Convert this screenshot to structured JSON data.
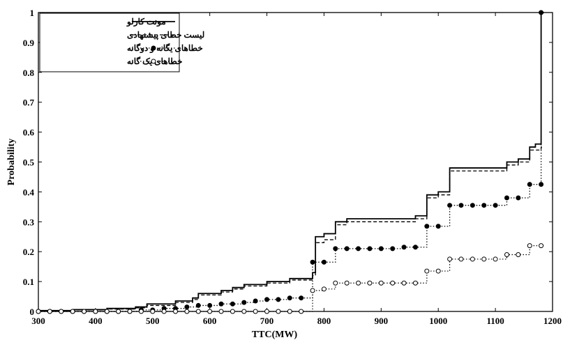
{
  "chart_data": {
    "type": "line",
    "title": "",
    "xlabel": "TTC(MW)",
    "ylabel": "Probability",
    "xlim": [
      300,
      1200
    ],
    "ylim": [
      0,
      1
    ],
    "xticks": [
      "300",
      "400",
      "500",
      "600",
      "700",
      "800",
      "900",
      "1000",
      "1100",
      "1200"
    ],
    "yticks": [
      "0",
      "0.1",
      "0.2",
      "0.3",
      "0.4",
      "0.5",
      "0.6",
      "0.7",
      "0.8",
      "0.9",
      "1"
    ],
    "grid": false,
    "legend_position": "top-left",
    "series": [
      {
        "name": "مونت کارلو",
        "style": "solid",
        "x": [
          300,
          360,
          420,
          470,
          490,
          540,
          570,
          580,
          620,
          640,
          660,
          700,
          740,
          780,
          785,
          800,
          820,
          840,
          900,
          960,
          980,
          1000,
          1020,
          1050,
          1100,
          1120,
          1140,
          1160,
          1170,
          1180,
          1185
        ],
        "y": [
          0.003,
          0.006,
          0.01,
          0.015,
          0.025,
          0.035,
          0.045,
          0.06,
          0.07,
          0.08,
          0.09,
          0.1,
          0.11,
          0.13,
          0.25,
          0.26,
          0.3,
          0.31,
          0.31,
          0.32,
          0.39,
          0.4,
          0.48,
          0.48,
          0.48,
          0.5,
          0.51,
          0.55,
          0.56,
          1.0,
          1.0
        ]
      },
      {
        "name": "لیست خطای پیشنهادی",
        "style": "dashed",
        "x": [
          300,
          360,
          420,
          470,
          490,
          540,
          570,
          580,
          620,
          640,
          660,
          700,
          740,
          780,
          785,
          800,
          820,
          840,
          900,
          960,
          980,
          1000,
          1020,
          1050,
          1100,
          1120,
          1140,
          1160,
          1180,
          1185
        ],
        "y": [
          0.002,
          0.005,
          0.008,
          0.012,
          0.02,
          0.03,
          0.04,
          0.055,
          0.065,
          0.075,
          0.085,
          0.095,
          0.105,
          0.12,
          0.23,
          0.24,
          0.29,
          0.3,
          0.3,
          0.31,
          0.38,
          0.39,
          0.47,
          0.47,
          0.47,
          0.49,
          0.5,
          0.54,
          0.55,
          0.55
        ]
      },
      {
        "name": "خطاهای یگانه و دوگانه",
        "style": "dotted-filled-marker",
        "x": [
          300,
          320,
          340,
          360,
          380,
          400,
          420,
          440,
          460,
          480,
          500,
          520,
          540,
          560,
          580,
          600,
          620,
          640,
          660,
          680,
          700,
          720,
          740,
          760,
          780,
          800,
          820,
          840,
          860,
          880,
          900,
          920,
          940,
          960,
          980,
          1000,
          1020,
          1040,
          1060,
          1080,
          1100,
          1120,
          1140,
          1160,
          1180
        ],
        "y": [
          0,
          0,
          0,
          0,
          0,
          0,
          0,
          0,
          0,
          0.005,
          0.005,
          0.01,
          0.01,
          0.015,
          0.02,
          0.02,
          0.025,
          0.025,
          0.03,
          0.035,
          0.04,
          0.04,
          0.045,
          0.045,
          0.165,
          0.165,
          0.21,
          0.21,
          0.21,
          0.21,
          0.21,
          0.21,
          0.215,
          0.215,
          0.285,
          0.285,
          0.355,
          0.355,
          0.355,
          0.355,
          0.355,
          0.38,
          0.38,
          0.425,
          0.425
        ]
      },
      {
        "name": "خطاهای یک گانه",
        "style": "dotted-open-marker",
        "x": [
          300,
          320,
          340,
          360,
          380,
          400,
          420,
          440,
          460,
          480,
          500,
          520,
          540,
          560,
          580,
          600,
          620,
          640,
          660,
          680,
          700,
          720,
          740,
          760,
          780,
          800,
          820,
          840,
          860,
          880,
          900,
          920,
          940,
          960,
          980,
          1000,
          1020,
          1040,
          1060,
          1080,
          1100,
          1120,
          1140,
          1160,
          1180
        ],
        "y": [
          0,
          0,
          0,
          0,
          0,
          0,
          0,
          0,
          0,
          0,
          0,
          0,
          0,
          0,
          0,
          0,
          0,
          0,
          0,
          0,
          0,
          0,
          0,
          0,
          0.07,
          0.075,
          0.095,
          0.095,
          0.095,
          0.095,
          0.095,
          0.095,
          0.095,
          0.095,
          0.135,
          0.135,
          0.175,
          0.175,
          0.175,
          0.175,
          0.175,
          0.19,
          0.19,
          0.22,
          0.22
        ]
      }
    ],
    "extra_markers": [
      {
        "series": 2,
        "x": 1180,
        "y": 1.0
      }
    ]
  }
}
